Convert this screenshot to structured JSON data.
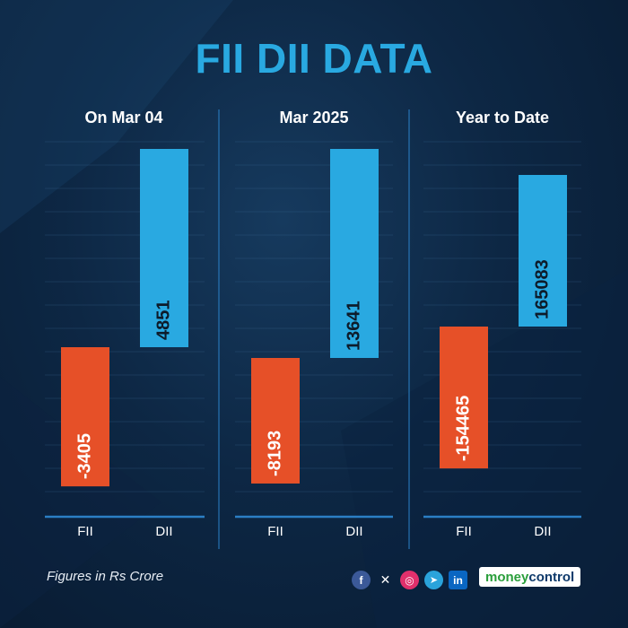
{
  "title": "FII DII DATA",
  "footnote": "Figures in Rs Crore",
  "brand": {
    "part1": "money",
    "part2": "control"
  },
  "social_icons": [
    "facebook-icon",
    "x-icon",
    "instagram-icon",
    "telegram-icon",
    "linkedin-icon"
  ],
  "colors": {
    "fii": "#e65028",
    "dii": "#29a9e1",
    "title": "#29a9e1",
    "axis": "#2b7fc4"
  },
  "chart_data": [
    {
      "type": "bar",
      "title": "On Mar 04",
      "categories": [
        "FII",
        "DII"
      ],
      "values": [
        -3405,
        4851
      ],
      "value_labels": [
        "-3405",
        "4851"
      ]
    },
    {
      "type": "bar",
      "title": "Mar 2025",
      "categories": [
        "FII",
        "DII"
      ],
      "values": [
        -8193,
        13641
      ],
      "value_labels": [
        "-8193",
        "13641"
      ]
    },
    {
      "type": "bar",
      "title": "Year to Date",
      "categories": [
        "FII",
        "DII"
      ],
      "values": [
        -154465,
        165083
      ],
      "value_labels": [
        "-154465",
        "165083"
      ]
    }
  ]
}
